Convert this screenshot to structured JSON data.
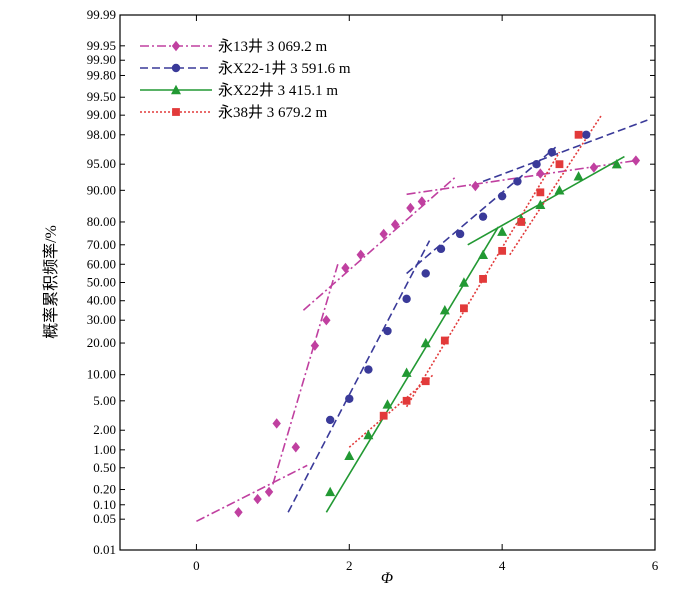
{
  "chart_data": {
    "type": "scatter",
    "title": "",
    "xlabel": "Φ",
    "ylabel": "概率累积频率/%",
    "xlim": [
      -1,
      6
    ],
    "x_ticks": [
      0,
      2,
      4,
      6
    ],
    "x_tick_labels": [
      "0",
      "2",
      "4",
      "6"
    ],
    "y_scale": "probability",
    "y_ticks": [
      0.01,
      0.05,
      0.1,
      0.2,
      0.5,
      1.0,
      2.0,
      5.0,
      10.0,
      20.0,
      30.0,
      40.0,
      50.0,
      60.0,
      70.0,
      80.0,
      90.0,
      95.0,
      98.0,
      99.0,
      99.5,
      99.8,
      99.9,
      99.95,
      99.99
    ],
    "y_tick_labels": [
      "0.01",
      "0.05",
      "0.10",
      "0.20",
      "0.50",
      "1.00",
      "2.00",
      "5.00",
      "10.00",
      "20.00",
      "30.00",
      "40.00",
      "50.00",
      "60.00",
      "70.00",
      "80.00",
      "90.00",
      "95.00",
      "98.00",
      "99.00",
      "99.50",
      "99.80",
      "99.90",
      "99.95",
      "99.99"
    ],
    "legend_position": "top-left",
    "series": [
      {
        "name": "永13井  3 069.2 m",
        "color": "#c040a0",
        "marker": "diamond",
        "line_style": "dashdot",
        "points": [
          [
            0.55,
            0.07
          ],
          [
            0.8,
            0.13
          ],
          [
            0.95,
            0.18
          ],
          [
            1.05,
            2.5
          ],
          [
            1.3,
            1.1
          ],
          [
            1.55,
            19
          ],
          [
            1.7,
            30
          ],
          [
            1.95,
            58
          ],
          [
            2.15,
            65
          ],
          [
            2.45,
            75
          ],
          [
            2.6,
            79
          ],
          [
            2.8,
            85
          ],
          [
            2.95,
            87
          ],
          [
            3.65,
            91
          ],
          [
            4.5,
            93.5
          ],
          [
            5.2,
            94.5
          ],
          [
            5.75,
            95.5
          ]
        ],
        "fit_lines": [
          [
            [
              0.0,
              0.045
            ],
            [
              1.45,
              0.55
            ]
          ],
          [
            [
              1.0,
              0.25
            ],
            [
              1.85,
              60
            ]
          ],
          [
            [
              1.4,
              35
            ],
            [
              3.4,
              93
            ]
          ],
          [
            [
              2.75,
              89
            ],
            [
              5.75,
              95.5
            ]
          ]
        ]
      },
      {
        "name": "永X22-1井  3 591.6 m",
        "color": "#3a3a99",
        "marker": "circle",
        "line_style": "dashed",
        "points": [
          [
            1.75,
            2.8
          ],
          [
            2.0,
            5.3
          ],
          [
            2.25,
            11.3
          ],
          [
            2.5,
            25
          ],
          [
            2.75,
            41
          ],
          [
            3.0,
            55
          ],
          [
            3.2,
            68
          ],
          [
            3.45,
            75
          ],
          [
            3.75,
            82
          ],
          [
            4.0,
            88.5
          ],
          [
            4.2,
            92
          ],
          [
            4.45,
            95
          ],
          [
            4.65,
            96.5
          ],
          [
            5.1,
            98
          ]
        ],
        "fit_lines": [
          [
            [
              1.2,
              0.07
            ],
            [
              3.05,
              72
            ]
          ],
          [
            [
              2.75,
              55
            ],
            [
              4.7,
              97
            ]
          ],
          [
            [
              3.75,
              92
            ],
            [
              5.9,
              98.8
            ]
          ]
        ]
      },
      {
        "name": "永X22井  3 415.1 m",
        "color": "#229933",
        "marker": "triangle",
        "line_style": "solid",
        "points": [
          [
            1.75,
            0.18
          ],
          [
            2.0,
            0.8
          ],
          [
            2.25,
            1.7
          ],
          [
            2.5,
            4.5
          ],
          [
            2.75,
            10.5
          ],
          [
            3.0,
            20
          ],
          [
            3.25,
            35
          ],
          [
            3.5,
            50
          ],
          [
            3.75,
            65
          ],
          [
            4.0,
            76
          ],
          [
            4.25,
            81
          ],
          [
            4.5,
            86
          ],
          [
            4.75,
            90
          ],
          [
            5.0,
            93
          ],
          [
            5.5,
            95
          ]
        ],
        "fit_lines": [
          [
            [
              1.7,
              0.07
            ],
            [
              3.95,
              78
            ]
          ],
          [
            [
              3.55,
              70
            ],
            [
              5.6,
              96
            ]
          ]
        ]
      },
      {
        "name": "永38井  3 679.2 m",
        "color": "#e23a3a",
        "marker": "square",
        "line_style": "dotted",
        "points": [
          [
            2.45,
            3.2
          ],
          [
            2.75,
            5.0
          ],
          [
            3.0,
            8.5
          ],
          [
            3.25,
            21
          ],
          [
            3.5,
            36
          ],
          [
            3.75,
            52
          ],
          [
            4.0,
            67
          ],
          [
            4.25,
            80
          ],
          [
            4.5,
            89.5
          ],
          [
            4.75,
            95
          ],
          [
            5.0,
            98
          ]
        ],
        "fit_lines": [
          [
            [
              2.0,
              1.1
            ],
            [
              3.1,
              10
            ]
          ],
          [
            [
              2.75,
              4.2
            ],
            [
              4.75,
              96.5
            ]
          ],
          [
            [
              4.1,
              65
            ],
            [
              5.3,
              99
            ]
          ]
        ]
      }
    ]
  }
}
